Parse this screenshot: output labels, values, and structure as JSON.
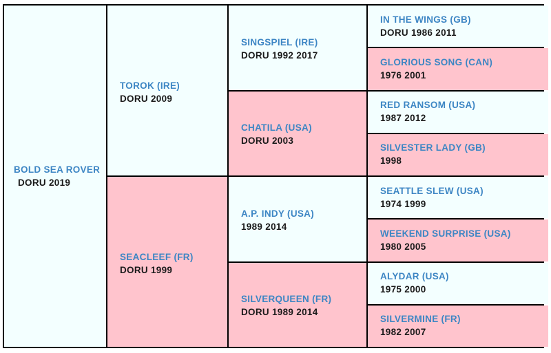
{
  "subject": {
    "name": "BOLD SEA ROVER",
    "info": "DORU 2019"
  },
  "sire": {
    "name": "TOROK (IRE)",
    "info": "DORU 2009"
  },
  "dam": {
    "name": "SEACLEEF (FR)",
    "info": "DORU 1999"
  },
  "gen3": [
    {
      "name": "SINGSPIEL (IRE)",
      "info": "DORU 1992 2017",
      "sex": "male"
    },
    {
      "name": "CHATILA (USA)",
      "info": "DORU 2003",
      "sex": "female"
    },
    {
      "name": "A.P. INDY (USA)",
      "info": "1989 2014",
      "sex": "male"
    },
    {
      "name": "SILVERQUEEN (FR)",
      "info": "DORU 1989 2014",
      "sex": "female"
    }
  ],
  "gen4": [
    {
      "name": "IN THE WINGS (GB)",
      "info": "DORU 1986 2011",
      "sex": "male"
    },
    {
      "name": "GLORIOUS SONG (CAN)",
      "info": "1976 2001",
      "sex": "female"
    },
    {
      "name": "RED RANSOM (USA)",
      "info": "1987 2012",
      "sex": "male"
    },
    {
      "name": "SILVESTER LADY (GB)",
      "info": "1998",
      "sex": "female"
    },
    {
      "name": "SEATTLE SLEW (USA)",
      "info": "1974 1999",
      "sex": "male"
    },
    {
      "name": "WEEKEND SURPRISE (USA)",
      "info": "1980 2005",
      "sex": "female"
    },
    {
      "name": "ALYDAR (USA)",
      "info": "1975 2000",
      "sex": "male"
    },
    {
      "name": "SILVERMINE (FR)",
      "info": "1982 2007",
      "sex": "female"
    }
  ],
  "colors": {
    "male_bg": "#f3ffff",
    "female_bg": "#ffc4cd",
    "name_text": "#3d86c4",
    "info_text": "#1a1a1a",
    "border": "#000000"
  }
}
